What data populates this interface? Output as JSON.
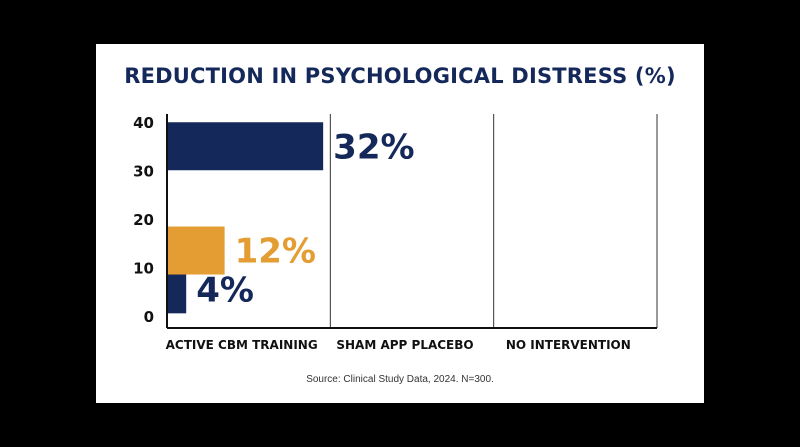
{
  "chart_data": {
    "type": "bar",
    "orientation": "horizontal-bars-on-vertical-value-axis",
    "title": "REDUCTION IN PSYCHOLOGICAL DISTRESS (%)",
    "categories": [
      "ACTIVE CBM TRAINING",
      "SHAM APP PLACEBO",
      "NO INTERVENTION"
    ],
    "y_ticks": [
      "0",
      "10",
      "20",
      "30",
      "40"
    ],
    "ylim": [
      0,
      40
    ],
    "grid": true,
    "series": [
      {
        "values": [
          4,
          12,
          32
        ],
        "labels": [
          "4%",
          "12%",
          "32%"
        ],
        "colors": [
          "#14285a",
          "#e39d33",
          "#14285a"
        ]
      }
    ],
    "source": "Source: Clinical Study Data, 2024. N=300."
  }
}
